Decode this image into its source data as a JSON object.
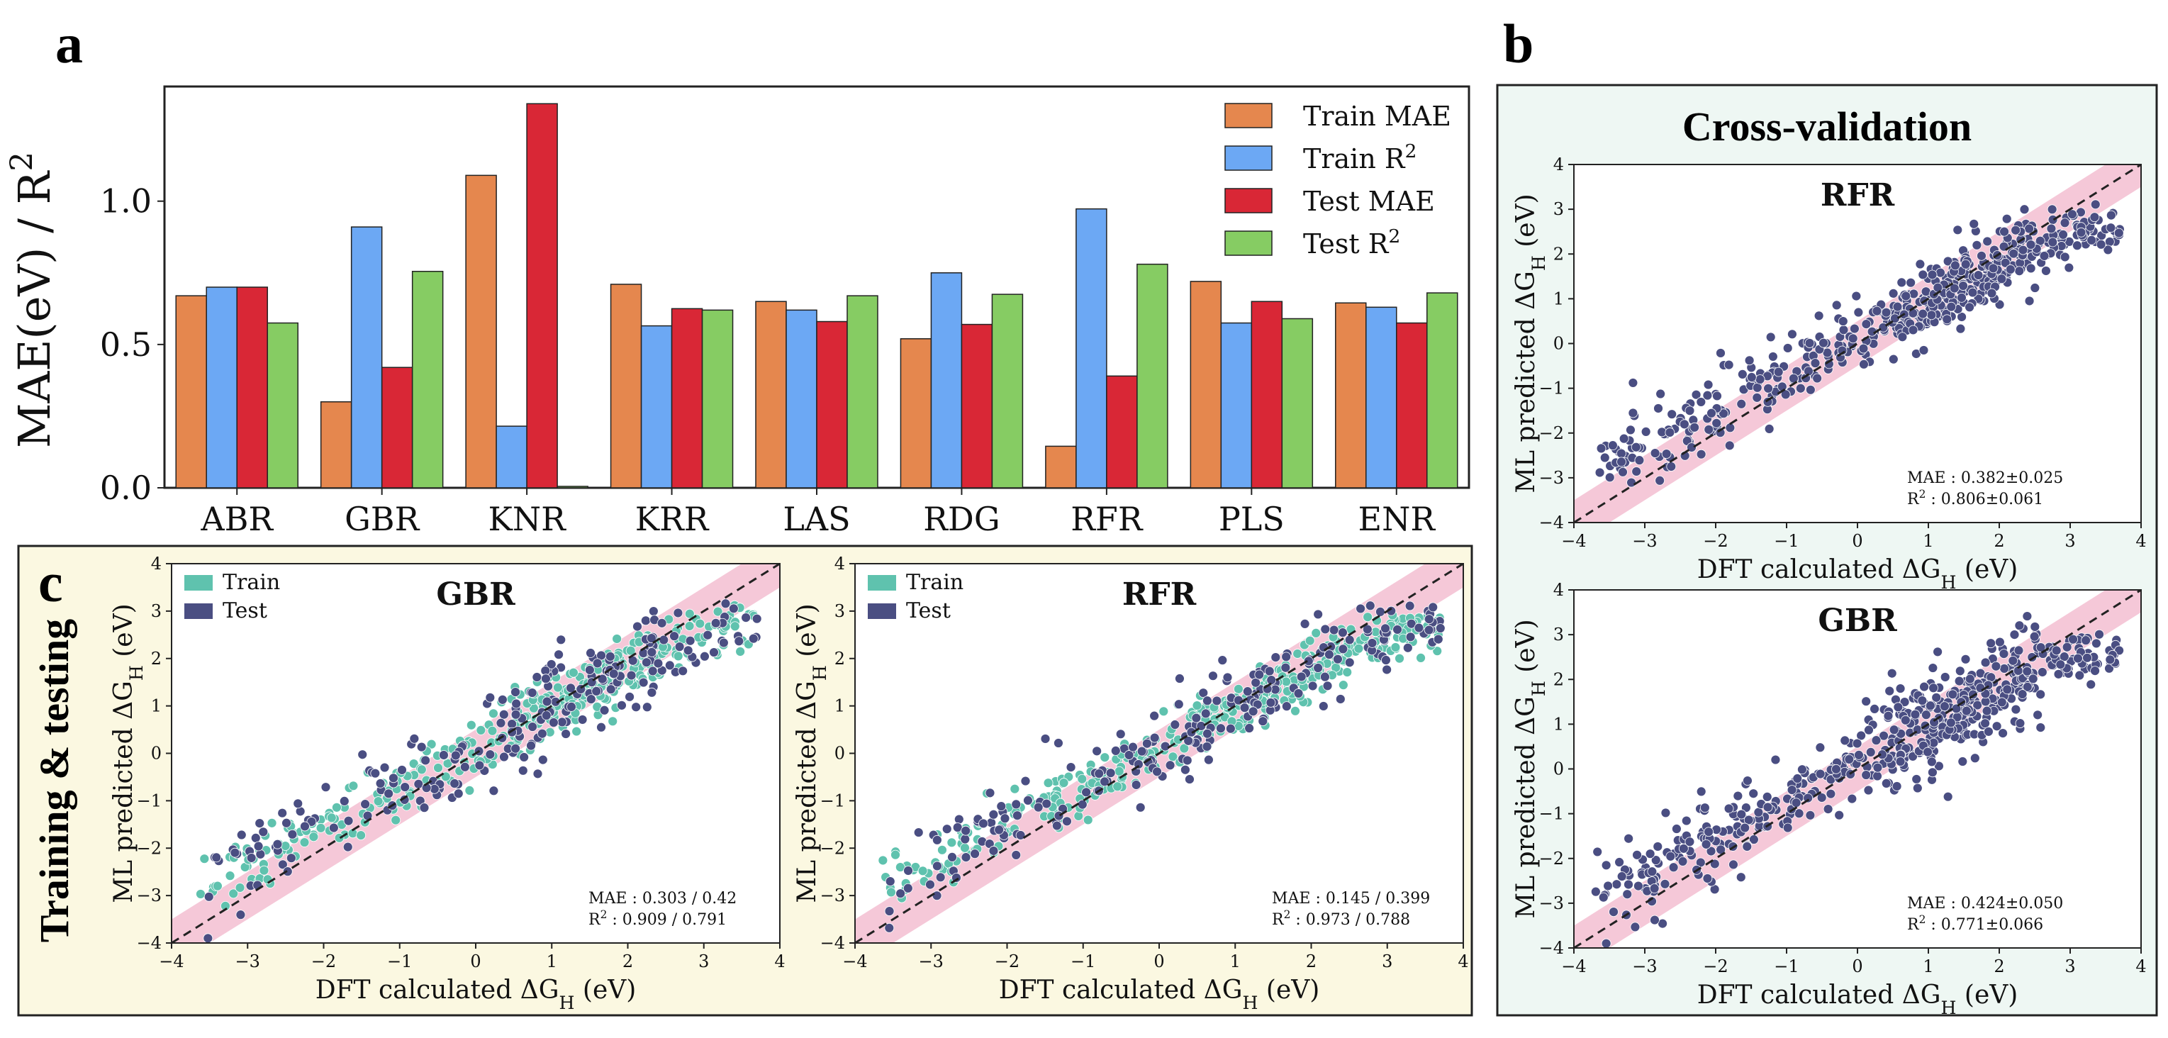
{
  "panel_labels": {
    "a": "a",
    "b": "b",
    "c": "c"
  },
  "colors": {
    "train_mae": "#E5874E",
    "train_r2": "#6CA8F4",
    "test_mae": "#D92736",
    "test_r2": "#86CC63",
    "train_pt": "#5FC2AE",
    "test_pt": "#4A4E82",
    "band": "#F2B6CB",
    "bg_b": "#EEF7F3",
    "bg_c": "#FBF8E1"
  },
  "chart_data": [
    {
      "id": "bar",
      "type": "bar",
      "ylabel": "MAE(eV) / R²",
      "categories": [
        "ABR",
        "GBR",
        "KNR",
        "KRR",
        "LAS",
        "RDG",
        "RFR",
        "PLS",
        "ENR"
      ],
      "ylim": [
        0,
        1.4
      ],
      "yticks": [
        "0.0",
        "0.5",
        "1.0"
      ],
      "series": [
        {
          "name": "Train MAE",
          "values": [
            0.67,
            0.3,
            1.09,
            0.71,
            0.65,
            0.52,
            0.145,
            0.72,
            0.645
          ]
        },
        {
          "name": "Train R²",
          "values": [
            0.7,
            0.91,
            0.215,
            0.565,
            0.62,
            0.75,
            0.973,
            0.575,
            0.63
          ]
        },
        {
          "name": "Test MAE",
          "values": [
            0.7,
            0.42,
            1.34,
            0.625,
            0.58,
            0.57,
            0.39,
            0.65,
            0.575
          ]
        },
        {
          "name": "Test R²",
          "values": [
            0.575,
            0.755,
            0.005,
            0.62,
            0.67,
            0.675,
            0.78,
            0.59,
            0.68
          ]
        }
      ],
      "legend_position": "top-right"
    },
    {
      "id": "cv-rfr",
      "type": "scatter",
      "title": "RFR",
      "heading": "Cross-validation",
      "xlabel": "DFT calculated ΔGH (eV)",
      "ylabel": "ML predicted ΔGH (eV)",
      "xlim": [
        -4,
        4
      ],
      "ylim": [
        -4,
        4
      ],
      "ticks": [
        "−4",
        "−3",
        "−2",
        "−1",
        "0",
        "1",
        "2",
        "3",
        "4"
      ],
      "metrics": [
        "MAE :  0.382±0.025",
        "R² :  0.806±0.061"
      ],
      "spread": 0.42,
      "seed": 11,
      "n_test": 520,
      "n_train": 0
    },
    {
      "id": "cv-gbr",
      "type": "scatter",
      "title": "GBR",
      "xlabel": "DFT calculated ΔGH (eV)",
      "ylabel": "ML predicted ΔGH (eV)",
      "xlim": [
        -4,
        4
      ],
      "ylim": [
        -4,
        4
      ],
      "ticks": [
        "−4",
        "−3",
        "−2",
        "−1",
        "0",
        "1",
        "2",
        "3",
        "4"
      ],
      "metrics": [
        "MAE :  0.424±0.050",
        "R² :  0.771±0.066"
      ],
      "spread": 0.5,
      "seed": 23,
      "n_test": 560,
      "n_train": 0
    },
    {
      "id": "tt-gbr",
      "type": "scatter",
      "title": "GBR",
      "heading": "Training & testing",
      "legend": [
        "Train",
        "Test"
      ],
      "xlabel": "DFT calculated ΔGH (eV)",
      "ylabel": "ML predicted ΔGH (eV)",
      "xlim": [
        -4,
        4
      ],
      "ylim": [
        -4,
        4
      ],
      "ticks": [
        "−4",
        "−3",
        "−2",
        "−1",
        "0",
        "1",
        "2",
        "3",
        "4"
      ],
      "metrics": [
        "MAE :  0.303 / 0.42",
        "R² :  0.909 / 0.791"
      ],
      "spread": 0.5,
      "seed": 37,
      "n_test": 230,
      "n_train": 360
    },
    {
      "id": "tt-rfr",
      "type": "scatter",
      "title": "RFR",
      "legend": [
        "Train",
        "Test"
      ],
      "xlabel": "DFT calculated ΔGH (eV)",
      "ylabel": "ML predicted ΔGH (eV)",
      "xlim": [
        -4,
        4
      ],
      "ylim": [
        -4,
        4
      ],
      "ticks": [
        "−4",
        "−3",
        "−2",
        "−1",
        "0",
        "1",
        "2",
        "3",
        "4"
      ],
      "metrics": [
        "MAE :  0.145 / 0.399",
        "R² :  0.973 / 0.788"
      ],
      "spread": 0.45,
      "seed": 51,
      "n_test": 230,
      "n_train": 360
    }
  ]
}
